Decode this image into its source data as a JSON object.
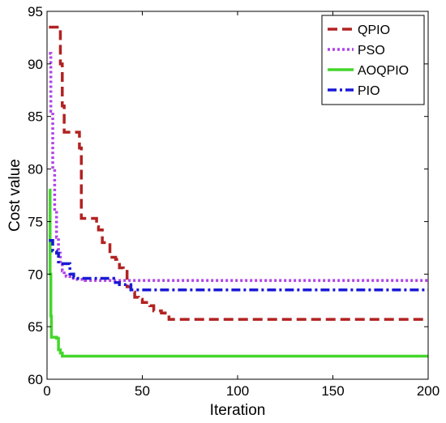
{
  "chart_data": {
    "type": "line",
    "title": "",
    "xlabel": "Iteration",
    "ylabel": "Cost value",
    "xlim": [
      0,
      200
    ],
    "ylim": [
      60,
      95
    ],
    "xticks": [
      0,
      50,
      100,
      150,
      200
    ],
    "yticks": [
      60,
      65,
      70,
      75,
      80,
      85,
      90,
      95
    ],
    "grid": false,
    "legend_position": "top-right",
    "series": [
      {
        "name": "QPIO",
        "color": "#b22222",
        "dash": "dashed",
        "x": [
          1,
          6,
          7,
          8,
          9,
          15,
          17,
          18,
          25,
          26,
          27,
          29,
          32,
          33,
          36,
          38,
          40,
          42,
          44,
          46,
          48,
          50,
          54,
          56,
          60,
          62,
          64,
          200
        ],
        "y": [
          93.5,
          93.5,
          90.0,
          86.0,
          83.5,
          83.5,
          82.0,
          75.3,
          75.3,
          74.5,
          74.2,
          73.0,
          72.8,
          71.6,
          71.4,
          70.6,
          70.4,
          68.8,
          68.3,
          67.8,
          67.6,
          67.3,
          67.0,
          66.5,
          66.3,
          66.1,
          65.7,
          65.7
        ]
      },
      {
        "name": "PSO",
        "color": "#b042e8",
        "dash": "dotted",
        "x": [
          1,
          2,
          3,
          4,
          5,
          6,
          7,
          8,
          9,
          10,
          12,
          15,
          20,
          200
        ],
        "y": [
          91.0,
          85.5,
          80.0,
          76.0,
          73.5,
          72.0,
          71.0,
          70.3,
          70.0,
          69.8,
          69.6,
          69.5,
          69.4,
          69.4
        ]
      },
      {
        "name": "AOQPIO",
        "color": "#44d62c",
        "dash": "solid",
        "x": [
          1,
          1.6,
          2,
          2.3,
          4,
          5,
          6,
          7,
          8,
          200
        ],
        "y": [
          78.0,
          70.0,
          66.0,
          64.0,
          64.0,
          63.9,
          62.8,
          62.5,
          62.2,
          62.2
        ]
      },
      {
        "name": "PIO",
        "color": "#1a1ad6",
        "dash": "dashdot",
        "x": [
          1,
          3,
          5,
          6,
          10,
          12,
          14,
          15,
          35,
          38,
          42,
          44,
          200
        ],
        "y": [
          73.2,
          72.2,
          72.0,
          71.0,
          71.0,
          70.0,
          69.7,
          69.6,
          69.2,
          69.0,
          69.0,
          68.5,
          68.5
        ]
      }
    ]
  }
}
